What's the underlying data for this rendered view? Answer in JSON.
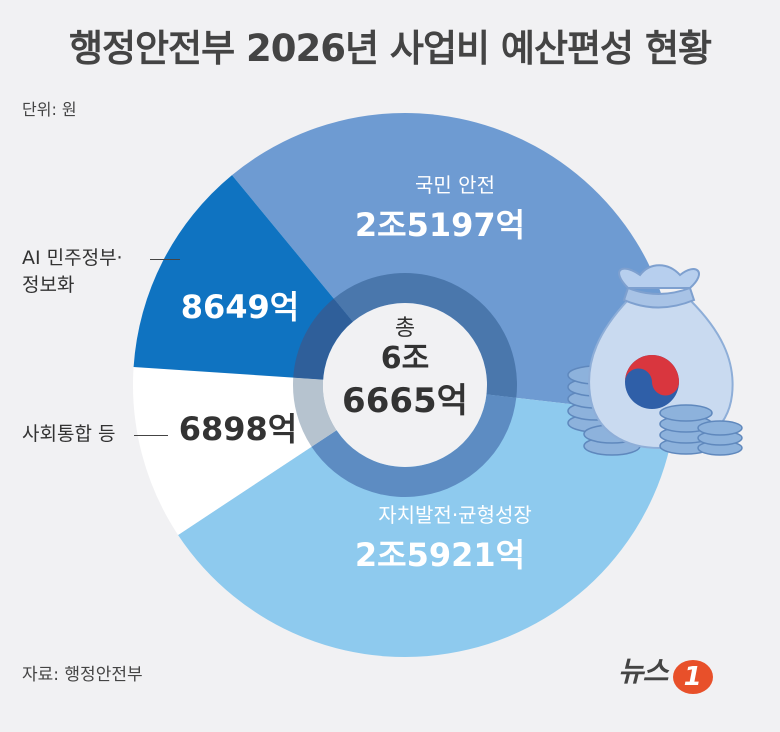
{
  "title": "행정안전부 2026년 사업비 예산편성 현황",
  "unit": "단위: 원",
  "source": "자료: 행정안전부",
  "logo": {
    "text": "뉴스",
    "mark": "1"
  },
  "colors": {
    "national_safety": "#6e9bd2",
    "local_development": "#8ecaee",
    "social_integration": "#ffffff",
    "ai_government": "#0f73c1",
    "background": "#f1f1f3",
    "ring": "#4f7db0"
  },
  "chart_data": {
    "type": "pie",
    "total": {
      "label": "총",
      "line1": "6조",
      "line2": "6665억",
      "value": 66665
    },
    "slices": [
      {
        "name": "국민 안전",
        "value_label": "2조5197억",
        "value": 25197
      },
      {
        "name": "자치발전·균형성장",
        "value_label": "2조5921억",
        "value": 25921
      },
      {
        "name": "사회통합 등",
        "value_label": "6898억",
        "value": 6898
      },
      {
        "name": "AI 민주정부· 정보화",
        "value_label": "8649억",
        "value": 8649
      }
    ]
  },
  "labels_left": {
    "ai_line1": "AI 민주정부·",
    "ai_line2": "정보화",
    "social": "사회통합 등"
  },
  "icon": "money-bag-with-coins-icon"
}
